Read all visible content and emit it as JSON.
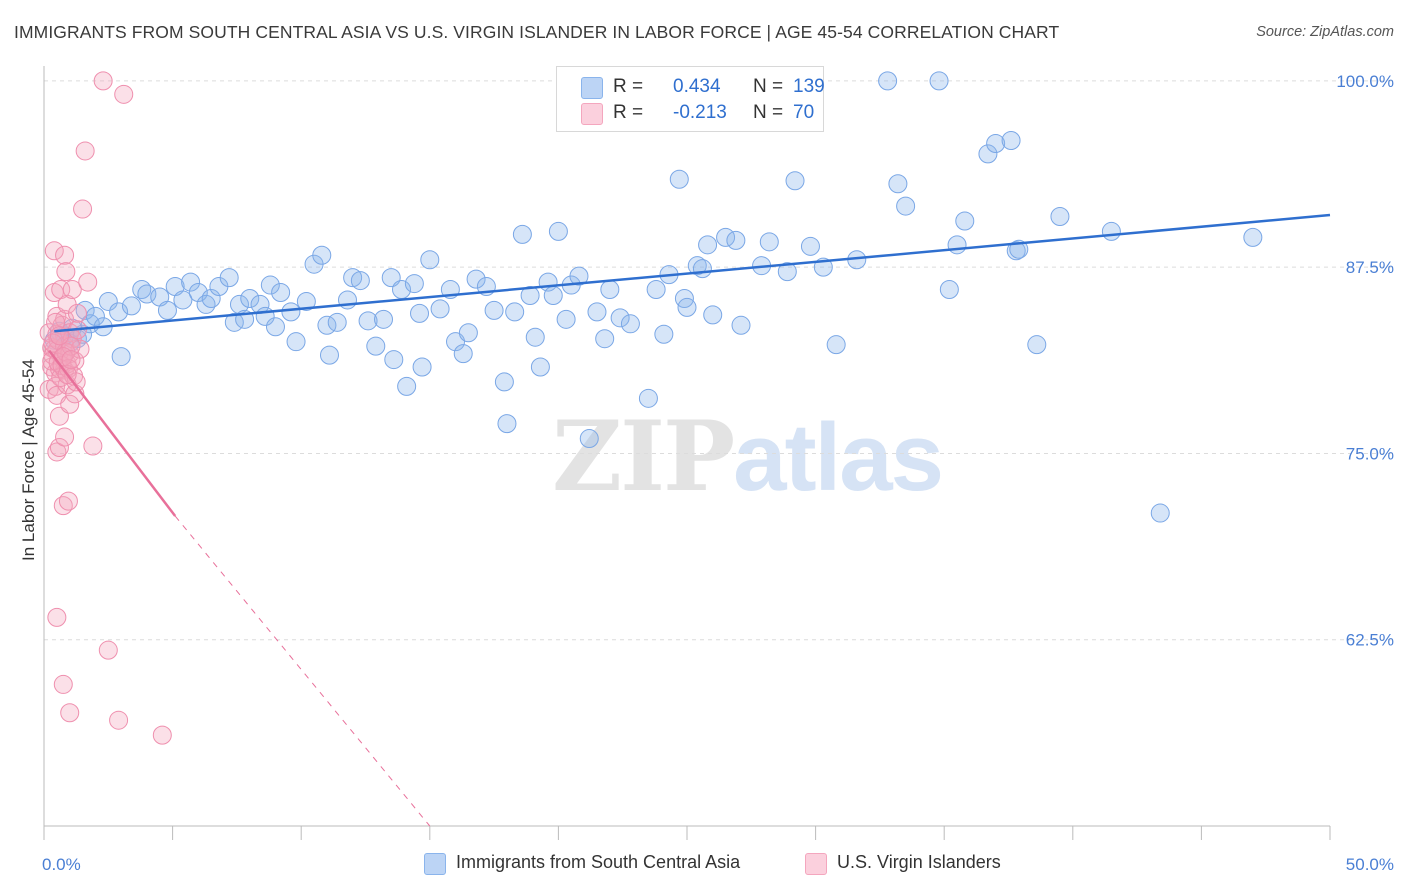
{
  "header": {
    "title": "IMMIGRANTS FROM SOUTH CENTRAL ASIA VS U.S. VIRGIN ISLANDER IN LABOR FORCE | AGE 45-54 CORRELATION CHART",
    "source": "Source: ZipAtlas.com"
  },
  "watermark": {
    "zip": "ZIP",
    "atlas": "atlas"
  },
  "stats_legend": {
    "rows": [
      {
        "r_label": "R =",
        "r_value": "0.434",
        "n_label": "N =",
        "n_value": "139",
        "color": "#8ab4ec"
      },
      {
        "r_label": "R =",
        "r_value": "-0.213",
        "n_label": "N =",
        "n_value": "70",
        "color": "#f4a6be"
      }
    ]
  },
  "chart_data": {
    "type": "scatter",
    "title": "IMMIGRANTS FROM SOUTH CENTRAL ASIA VS U.S. VIRGIN ISLANDER IN LABOR FORCE | AGE 45-54 CORRELATION CHART",
    "xlabel": "",
    "ylabel": "In Labor Force | Age 45-54",
    "xlim": [
      0,
      50
    ],
    "ylim": [
      50,
      101
    ],
    "x_tick_labels": [
      "0.0%",
      "50.0%"
    ],
    "y_ticks": [
      62.5,
      75.0,
      87.5,
      100.0
    ],
    "y_tick_labels": [
      "62.5%",
      "75.0%",
      "87.5%",
      "100.0%"
    ],
    "grid": true,
    "legend_position": "bottom",
    "colors": {
      "blue": "#8ab4ec",
      "blue_line": "#2f6fcf",
      "pink": "#f4a6be",
      "pink_line": "#e8709a",
      "tick": "#4a7fd4"
    },
    "series": [
      {
        "name": "Immigrants from South Central Asia",
        "color": "#8ab4ec",
        "r": 0.434,
        "n": 139,
        "trend": {
          "x": [
            0.4,
            50.0
          ],
          "y": [
            83.2,
            91.0
          ]
        },
        "points": [
          [
            0.4,
            82.6
          ],
          [
            0.6,
            83.2
          ],
          [
            0.8,
            82.9
          ],
          [
            1.0,
            82.4
          ],
          [
            1.1,
            83.4
          ],
          [
            1.3,
            82.7
          ],
          [
            1.5,
            83.0
          ],
          [
            1.6,
            84.6
          ],
          [
            1.8,
            83.7
          ],
          [
            2.0,
            84.2
          ],
          [
            2.3,
            83.5
          ],
          [
            2.5,
            85.2
          ],
          [
            2.9,
            84.5
          ],
          [
            3.0,
            81.5
          ],
          [
            3.4,
            84.9
          ],
          [
            3.8,
            86.0
          ],
          [
            4.0,
            85.7
          ],
          [
            4.5,
            85.5
          ],
          [
            4.8,
            84.6
          ],
          [
            5.1,
            86.2
          ],
          [
            5.4,
            85.3
          ],
          [
            5.7,
            86.5
          ],
          [
            6.0,
            85.8
          ],
          [
            6.3,
            85.0
          ],
          [
            6.5,
            85.4
          ],
          [
            6.8,
            86.2
          ],
          [
            7.2,
            86.8
          ],
          [
            7.4,
            83.8
          ],
          [
            7.6,
            85.0
          ],
          [
            7.8,
            84.0
          ],
          [
            8.0,
            85.4
          ],
          [
            8.4,
            85.0
          ],
          [
            8.6,
            84.2
          ],
          [
            8.8,
            86.3
          ],
          [
            9.2,
            85.8
          ],
          [
            9.6,
            84.5
          ],
          [
            9.8,
            82.5
          ],
          [
            10.2,
            85.2
          ],
          [
            10.5,
            87.7
          ],
          [
            10.8,
            88.3
          ],
          [
            11.0,
            83.6
          ],
          [
            11.1,
            81.6
          ],
          [
            11.4,
            83.8
          ],
          [
            11.8,
            85.3
          ],
          [
            12.0,
            86.8
          ],
          [
            12.3,
            86.6
          ],
          [
            12.6,
            83.9
          ],
          [
            12.9,
            82.2
          ],
          [
            13.2,
            84.0
          ],
          [
            13.5,
            86.8
          ],
          [
            13.6,
            81.3
          ],
          [
            13.9,
            86.0
          ],
          [
            14.1,
            79.5
          ],
          [
            14.4,
            86.4
          ],
          [
            14.6,
            84.4
          ],
          [
            14.7,
            80.8
          ],
          [
            15.0,
            88.0
          ],
          [
            15.4,
            84.7
          ],
          [
            15.8,
            86.0
          ],
          [
            16.0,
            82.5
          ],
          [
            16.3,
            81.7
          ],
          [
            16.5,
            83.1
          ],
          [
            16.8,
            86.7
          ],
          [
            17.2,
            86.2
          ],
          [
            17.5,
            84.6
          ],
          [
            17.9,
            79.8
          ],
          [
            18.0,
            77.0
          ],
          [
            18.3,
            84.5
          ],
          [
            18.6,
            89.7
          ],
          [
            18.9,
            85.6
          ],
          [
            19.1,
            82.8
          ],
          [
            19.3,
            80.8
          ],
          [
            19.6,
            86.5
          ],
          [
            19.8,
            85.6
          ],
          [
            20.0,
            89.9
          ],
          [
            20.3,
            84.0
          ],
          [
            20.5,
            86.3
          ],
          [
            20.8,
            86.9
          ],
          [
            21.2,
            76.0
          ],
          [
            21.5,
            84.5
          ],
          [
            21.8,
            82.7
          ],
          [
            22.0,
            86.0
          ],
          [
            22.4,
            84.1
          ],
          [
            22.8,
            83.7
          ],
          [
            23.5,
            78.7
          ],
          [
            23.8,
            86.0
          ],
          [
            24.1,
            83.0
          ],
          [
            24.3,
            87.0
          ],
          [
            24.7,
            93.4
          ],
          [
            24.9,
            85.4
          ],
          [
            25.4,
            87.6
          ],
          [
            25.6,
            87.4
          ],
          [
            25.8,
            89.0
          ],
          [
            26.0,
            84.3
          ],
          [
            26.5,
            89.5
          ],
          [
            26.9,
            89.3
          ],
          [
            27.1,
            83.6
          ],
          [
            27.9,
            87.6
          ],
          [
            28.2,
            89.2
          ],
          [
            28.9,
            87.2
          ],
          [
            29.2,
            93.3
          ],
          [
            29.5,
            100.0
          ],
          [
            29.8,
            88.9
          ],
          [
            30.3,
            87.5
          ],
          [
            30.8,
            82.3
          ],
          [
            31.6,
            88.0
          ],
          [
            32.8,
            100.0
          ],
          [
            33.2,
            93.1
          ],
          [
            33.5,
            91.6
          ],
          [
            34.8,
            100.0
          ],
          [
            35.2,
            86.0
          ],
          [
            35.5,
            89.0
          ],
          [
            35.8,
            90.6
          ],
          [
            36.7,
            95.1
          ],
          [
            37.0,
            95.8
          ],
          [
            37.6,
            96.0
          ],
          [
            37.8,
            88.6
          ],
          [
            37.9,
            88.7
          ],
          [
            38.6,
            82.3
          ],
          [
            39.5,
            90.9
          ],
          [
            41.5,
            89.9
          ],
          [
            43.4,
            71.0
          ],
          [
            47.0,
            89.5
          ],
          [
            25.0,
            84.8
          ],
          [
            9.0,
            83.5
          ]
        ]
      },
      {
        "name": "U.S. Virgin Islanders",
        "color": "#f4a6be",
        "r": -0.213,
        "n": 70,
        "trend": {
          "x": [
            0.2,
            5.1
          ],
          "y": [
            81.9,
            70.8
          ]
        },
        "trend_extension": {
          "x": [
            5.1,
            15.0
          ],
          "y": [
            70.8,
            50.0
          ]
        },
        "points": [
          [
            0.2,
            83.1
          ],
          [
            0.2,
            79.3
          ],
          [
            0.3,
            82.1
          ],
          [
            0.3,
            80.8
          ],
          [
            0.35,
            81.6
          ],
          [
            0.4,
            88.6
          ],
          [
            0.4,
            85.8
          ],
          [
            0.4,
            82.0
          ],
          [
            0.45,
            80.4
          ],
          [
            0.45,
            79.5
          ],
          [
            0.5,
            84.2
          ],
          [
            0.5,
            83.0
          ],
          [
            0.5,
            81.9
          ],
          [
            0.5,
            78.9
          ],
          [
            0.5,
            75.1
          ],
          [
            0.5,
            64.0
          ],
          [
            0.55,
            82.6
          ],
          [
            0.6,
            80.7
          ],
          [
            0.6,
            77.5
          ],
          [
            0.6,
            75.4
          ],
          [
            0.65,
            86.0
          ],
          [
            0.7,
            81.4
          ],
          [
            0.7,
            83.6
          ],
          [
            0.75,
            71.5
          ],
          [
            0.75,
            59.5
          ],
          [
            0.8,
            84.0
          ],
          [
            0.8,
            82.2
          ],
          [
            0.8,
            80.6
          ],
          [
            0.8,
            76.1
          ],
          [
            0.8,
            88.3
          ],
          [
            0.85,
            87.2
          ],
          [
            0.9,
            85.0
          ],
          [
            0.9,
            81.0
          ],
          [
            0.9,
            79.6
          ],
          [
            0.95,
            71.8
          ],
          [
            1.0,
            83.1
          ],
          [
            1.0,
            81.7
          ],
          [
            1.0,
            78.3
          ],
          [
            1.0,
            57.6
          ],
          [
            1.1,
            86.0
          ],
          [
            1.1,
            82.7
          ],
          [
            1.2,
            81.2
          ],
          [
            1.2,
            79.0
          ],
          [
            1.3,
            84.4
          ],
          [
            1.3,
            83.3
          ],
          [
            1.4,
            82.0
          ],
          [
            1.5,
            91.4
          ],
          [
            1.6,
            95.3
          ],
          [
            1.7,
            86.5
          ],
          [
            1.9,
            75.5
          ],
          [
            2.3,
            100.0
          ],
          [
            2.5,
            61.8
          ],
          [
            2.9,
            57.1
          ],
          [
            3.1,
            99.1
          ],
          [
            4.6,
            56.1
          ],
          [
            0.3,
            81.2
          ],
          [
            0.45,
            83.8
          ],
          [
            0.55,
            81.1
          ],
          [
            0.65,
            80.1
          ],
          [
            0.7,
            80.9
          ],
          [
            0.85,
            81.8
          ],
          [
            0.95,
            80.7
          ],
          [
            1.05,
            82.2
          ],
          [
            1.15,
            80.2
          ],
          [
            1.25,
            79.8
          ],
          [
            0.35,
            82.4
          ],
          [
            0.6,
            82.9
          ],
          [
            0.75,
            81.5
          ],
          [
            0.9,
            80.3
          ],
          [
            1.05,
            81.3
          ]
        ]
      }
    ]
  },
  "bottom_legend": [
    {
      "label": "Immigrants from South Central Asia",
      "color": "#8ab4ec"
    },
    {
      "label": "U.S. Virgin Islanders",
      "color": "#f4a6be"
    }
  ]
}
